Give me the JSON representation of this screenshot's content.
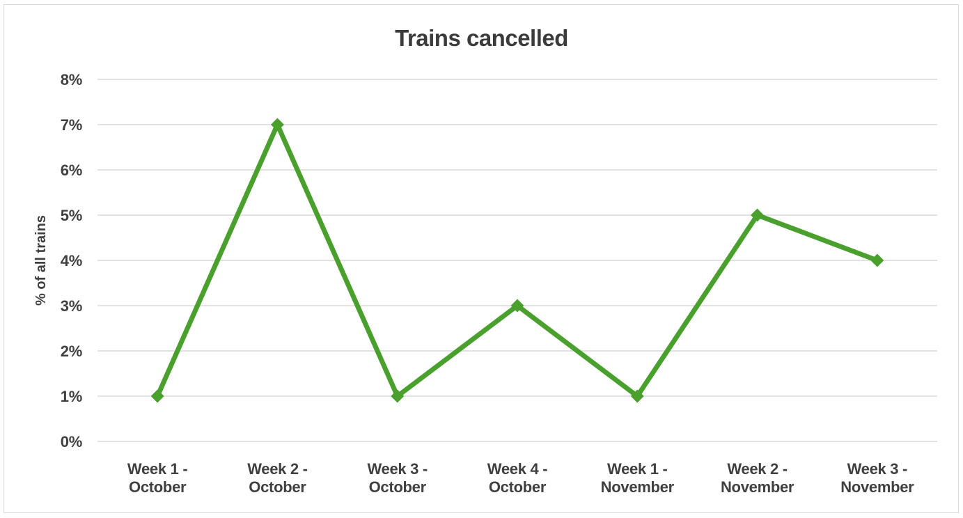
{
  "chart_data": {
    "type": "line",
    "title": "Trains cancelled",
    "xlabel": "",
    "ylabel": "% of all trains",
    "categories": [
      "Week 1 - October",
      "Week 2 - October",
      "Week 3 - October",
      "Week 4 - October",
      "Week 1 - November",
      "Week 2 - November",
      "Week 3 - November"
    ],
    "values": [
      1,
      7,
      1,
      3,
      1,
      5,
      4
    ],
    "ylim": [
      0,
      8
    ],
    "y_ticks": [
      "0%",
      "1%",
      "2%",
      "3%",
      "4%",
      "5%",
      "6%",
      "7%",
      "8%"
    ],
    "grid": true,
    "legend": "none",
    "marker": "diamond",
    "colors": {
      "line": "#4AA02C",
      "gridline": "#D9D9D9",
      "axis_text": "#404040",
      "title_text": "#3B3B3B",
      "border": "#D9D9D9",
      "background": "#FFFFFF"
    }
  }
}
